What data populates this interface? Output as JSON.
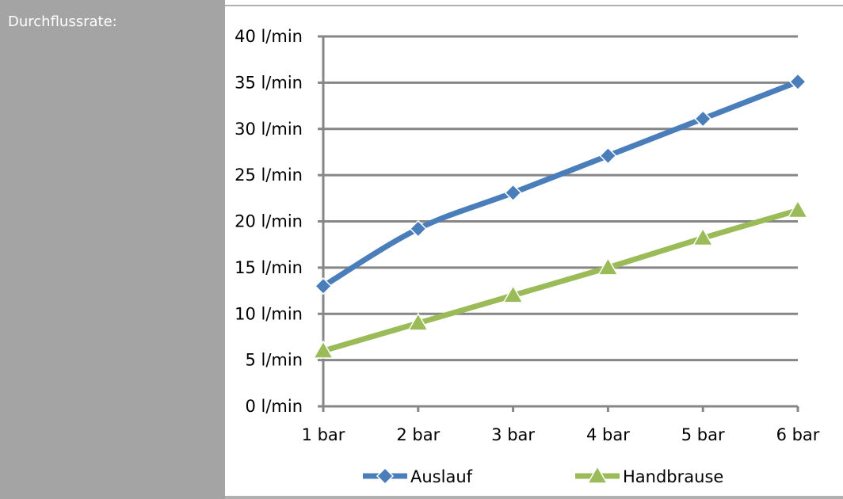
{
  "sidebar": {
    "label": "Durchflussrate:"
  },
  "chart_data": {
    "type": "line",
    "x": [
      "1 bar",
      "2 bar",
      "3 bar",
      "4 bar",
      "5 bar",
      "6 bar"
    ],
    "yticks": [
      "0 l/min",
      "5 l/min",
      "10 l/min",
      "15 l/min",
      "20 l/min",
      "25 l/min",
      "30 l/min",
      "35 l/min",
      "40 l/min"
    ],
    "ylim": [
      0,
      40
    ],
    "grid": true,
    "legend_position": "bottom",
    "series": [
      {
        "name": "Auslauf",
        "values": [
          13,
          19.2,
          23.1,
          27.1,
          31.1,
          35.1
        ],
        "color": "#4a7ebb",
        "marker": "diamond"
      },
      {
        "name": "Handbrause",
        "values": [
          6,
          9,
          12,
          15,
          18.2,
          21.2
        ],
        "color": "#9bbb59",
        "marker": "triangle"
      }
    ]
  }
}
